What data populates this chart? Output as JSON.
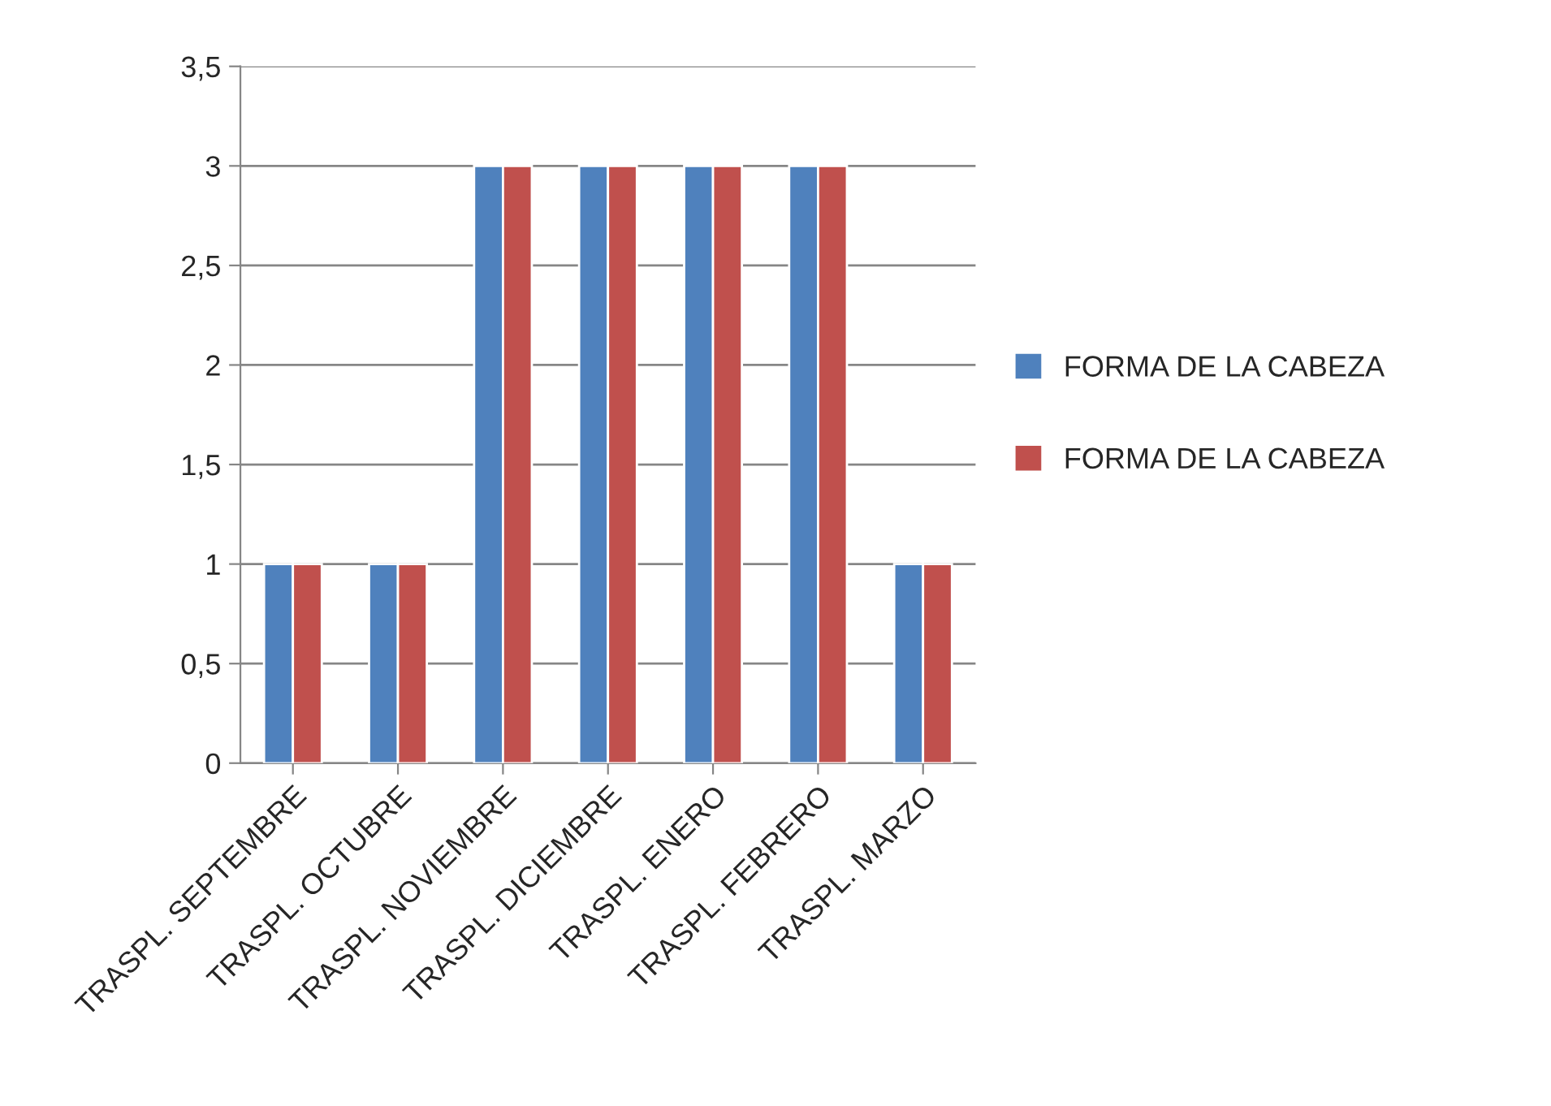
{
  "chart_data": {
    "type": "bar",
    "categories": [
      "TRASPL. SEPTEMBRE",
      "TRASPL. OCTUBRE",
      "TRASPL. NOVIEMBRE",
      "TRASPL. DICIEMBRE",
      "TRASPL. ENERO",
      "TRASPL. FEBRERO",
      "TRASPL. MARZO"
    ],
    "series": [
      {
        "name": "FORMA DE LA CABEZA",
        "color": "#4f81bd",
        "values": [
          1,
          1,
          3,
          3,
          3,
          3,
          1
        ]
      },
      {
        "name": "FORMA DE LA CABEZA",
        "color": "#c0504d",
        "values": [
          1,
          1,
          3,
          3,
          3,
          3,
          1
        ]
      }
    ],
    "ylim": [
      0,
      3.5
    ],
    "yticks": [
      {
        "value": 0,
        "label": "0"
      },
      {
        "value": 0.5,
        "label": "0,5"
      },
      {
        "value": 1,
        "label": "1"
      },
      {
        "value": 1.5,
        "label": "1,5"
      },
      {
        "value": 2,
        "label": "2"
      },
      {
        "value": 2.5,
        "label": "2,5"
      },
      {
        "value": 3,
        "label": "3"
      },
      {
        "value": 3.5,
        "label": "3,5"
      }
    ],
    "grid": "y",
    "legend": "right"
  }
}
